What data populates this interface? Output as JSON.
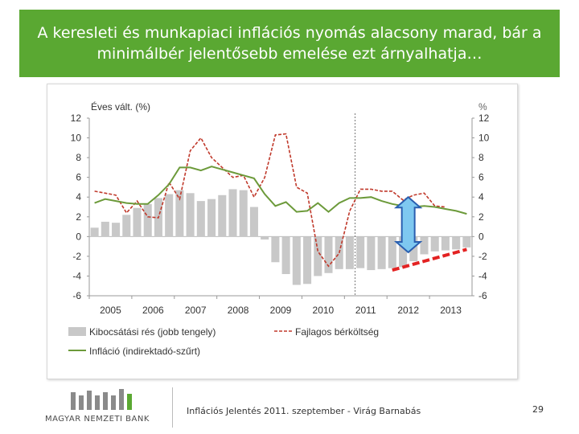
{
  "title": "A keresleti és munkapiaci inflációs nyomás alacsony marad, bár a minimálbér jelentősebb emelése ezt árnyalhatja…",
  "footer": {
    "logo_text": "MAGYAR NEMZETI BANK",
    "presentation": "Inflációs Jelentés 2011. szeptember - Virág Barnabás",
    "page": "29"
  },
  "colors": {
    "title_bg": "#5aa832",
    "gap_bar": "#c8c8c8",
    "inflation": "#6c9a3a",
    "ulc": "#c0392b",
    "forecast_ulc": "#e32222",
    "arrow": "#7ec8f0",
    "logo_bars": "#8a8a8a",
    "logo_accent": "#5aa832"
  },
  "chart_data": {
    "type": "bar",
    "ylabel_left": "Éves vált. (%)",
    "ylabel_right": "%",
    "ylim": [
      -6,
      12
    ],
    "yticks": [
      "12",
      "10",
      "8",
      "6",
      "4",
      "2",
      "0",
      "-2",
      "-4",
      "-6"
    ],
    "x_start": 2005,
    "quarters": 36,
    "xticks": [
      "2005",
      "2006",
      "2007",
      "2008",
      "2009",
      "2010",
      "2011",
      "2012",
      "2013"
    ],
    "forecast_start_quarter": 25,
    "legend": {
      "gap": "Kibocsátási rés (jobb tengely)",
      "ulc": "Fajlagos bérköltség",
      "inflation": "Infláció (indirektadó-szűrt)"
    },
    "series": [
      {
        "name": "Kibocsátási rés (jobb tengely)",
        "type": "bar",
        "values": [
          0.9,
          1.5,
          1.4,
          2.2,
          2.9,
          3.3,
          3.9,
          4.3,
          4.7,
          4.4,
          3.6,
          3.8,
          4.2,
          4.8,
          4.7,
          3.0,
          -0.3,
          -2.6,
          -3.8,
          -4.9,
          -4.8,
          -4.0,
          -3.7,
          -3.3,
          -3.3,
          -3.2,
          -3.4,
          -3.3,
          -3.2,
          -3.1,
          -2.5,
          -1.8,
          -1.5,
          -1.4,
          -1.3,
          -1.1
        ]
      },
      {
        "name": "Fajlagos bérköltség",
        "type": "line-dashed",
        "values": [
          4.6,
          4.4,
          4.2,
          2.4,
          3.6,
          2.0,
          1.9,
          5.5,
          3.8,
          8.7,
          10.0,
          8.0,
          7.0,
          6.0,
          6.2,
          4.0,
          6.0,
          10.3,
          10.4,
          5.0,
          4.4,
          -1.5,
          -3.0,
          -1.7,
          2.6,
          4.8,
          4.8,
          4.6,
          4.6,
          3.7,
          4.2,
          4.4,
          3.1,
          3.0
        ]
      },
      {
        "name": "Fajlagos bérköltség (előrejelzés)",
        "type": "line-forecast",
        "start_quarter": 28,
        "values": [
          -3.4,
          -3.1,
          -2.8,
          -2.5,
          -2.2,
          -1.9,
          -1.6,
          -1.3
        ]
      },
      {
        "name": "Infláció (indirektadó-szűrt)",
        "type": "line",
        "values": [
          3.4,
          3.8,
          3.6,
          3.4,
          3.3,
          3.3,
          4.2,
          5.3,
          7.0,
          7.0,
          6.7,
          7.1,
          6.8,
          6.5,
          6.2,
          5.9,
          4.3,
          3.1,
          3.5,
          2.5,
          2.6,
          3.4,
          2.5,
          3.4,
          3.9,
          3.9,
          4.0,
          3.6,
          3.3,
          3.1,
          3.0,
          3.1,
          3.0,
          2.8,
          2.6,
          2.3
        ]
      }
    ],
    "arrow": {
      "quarter": 29.5,
      "from": -1.6,
      "to": 4.0
    }
  }
}
